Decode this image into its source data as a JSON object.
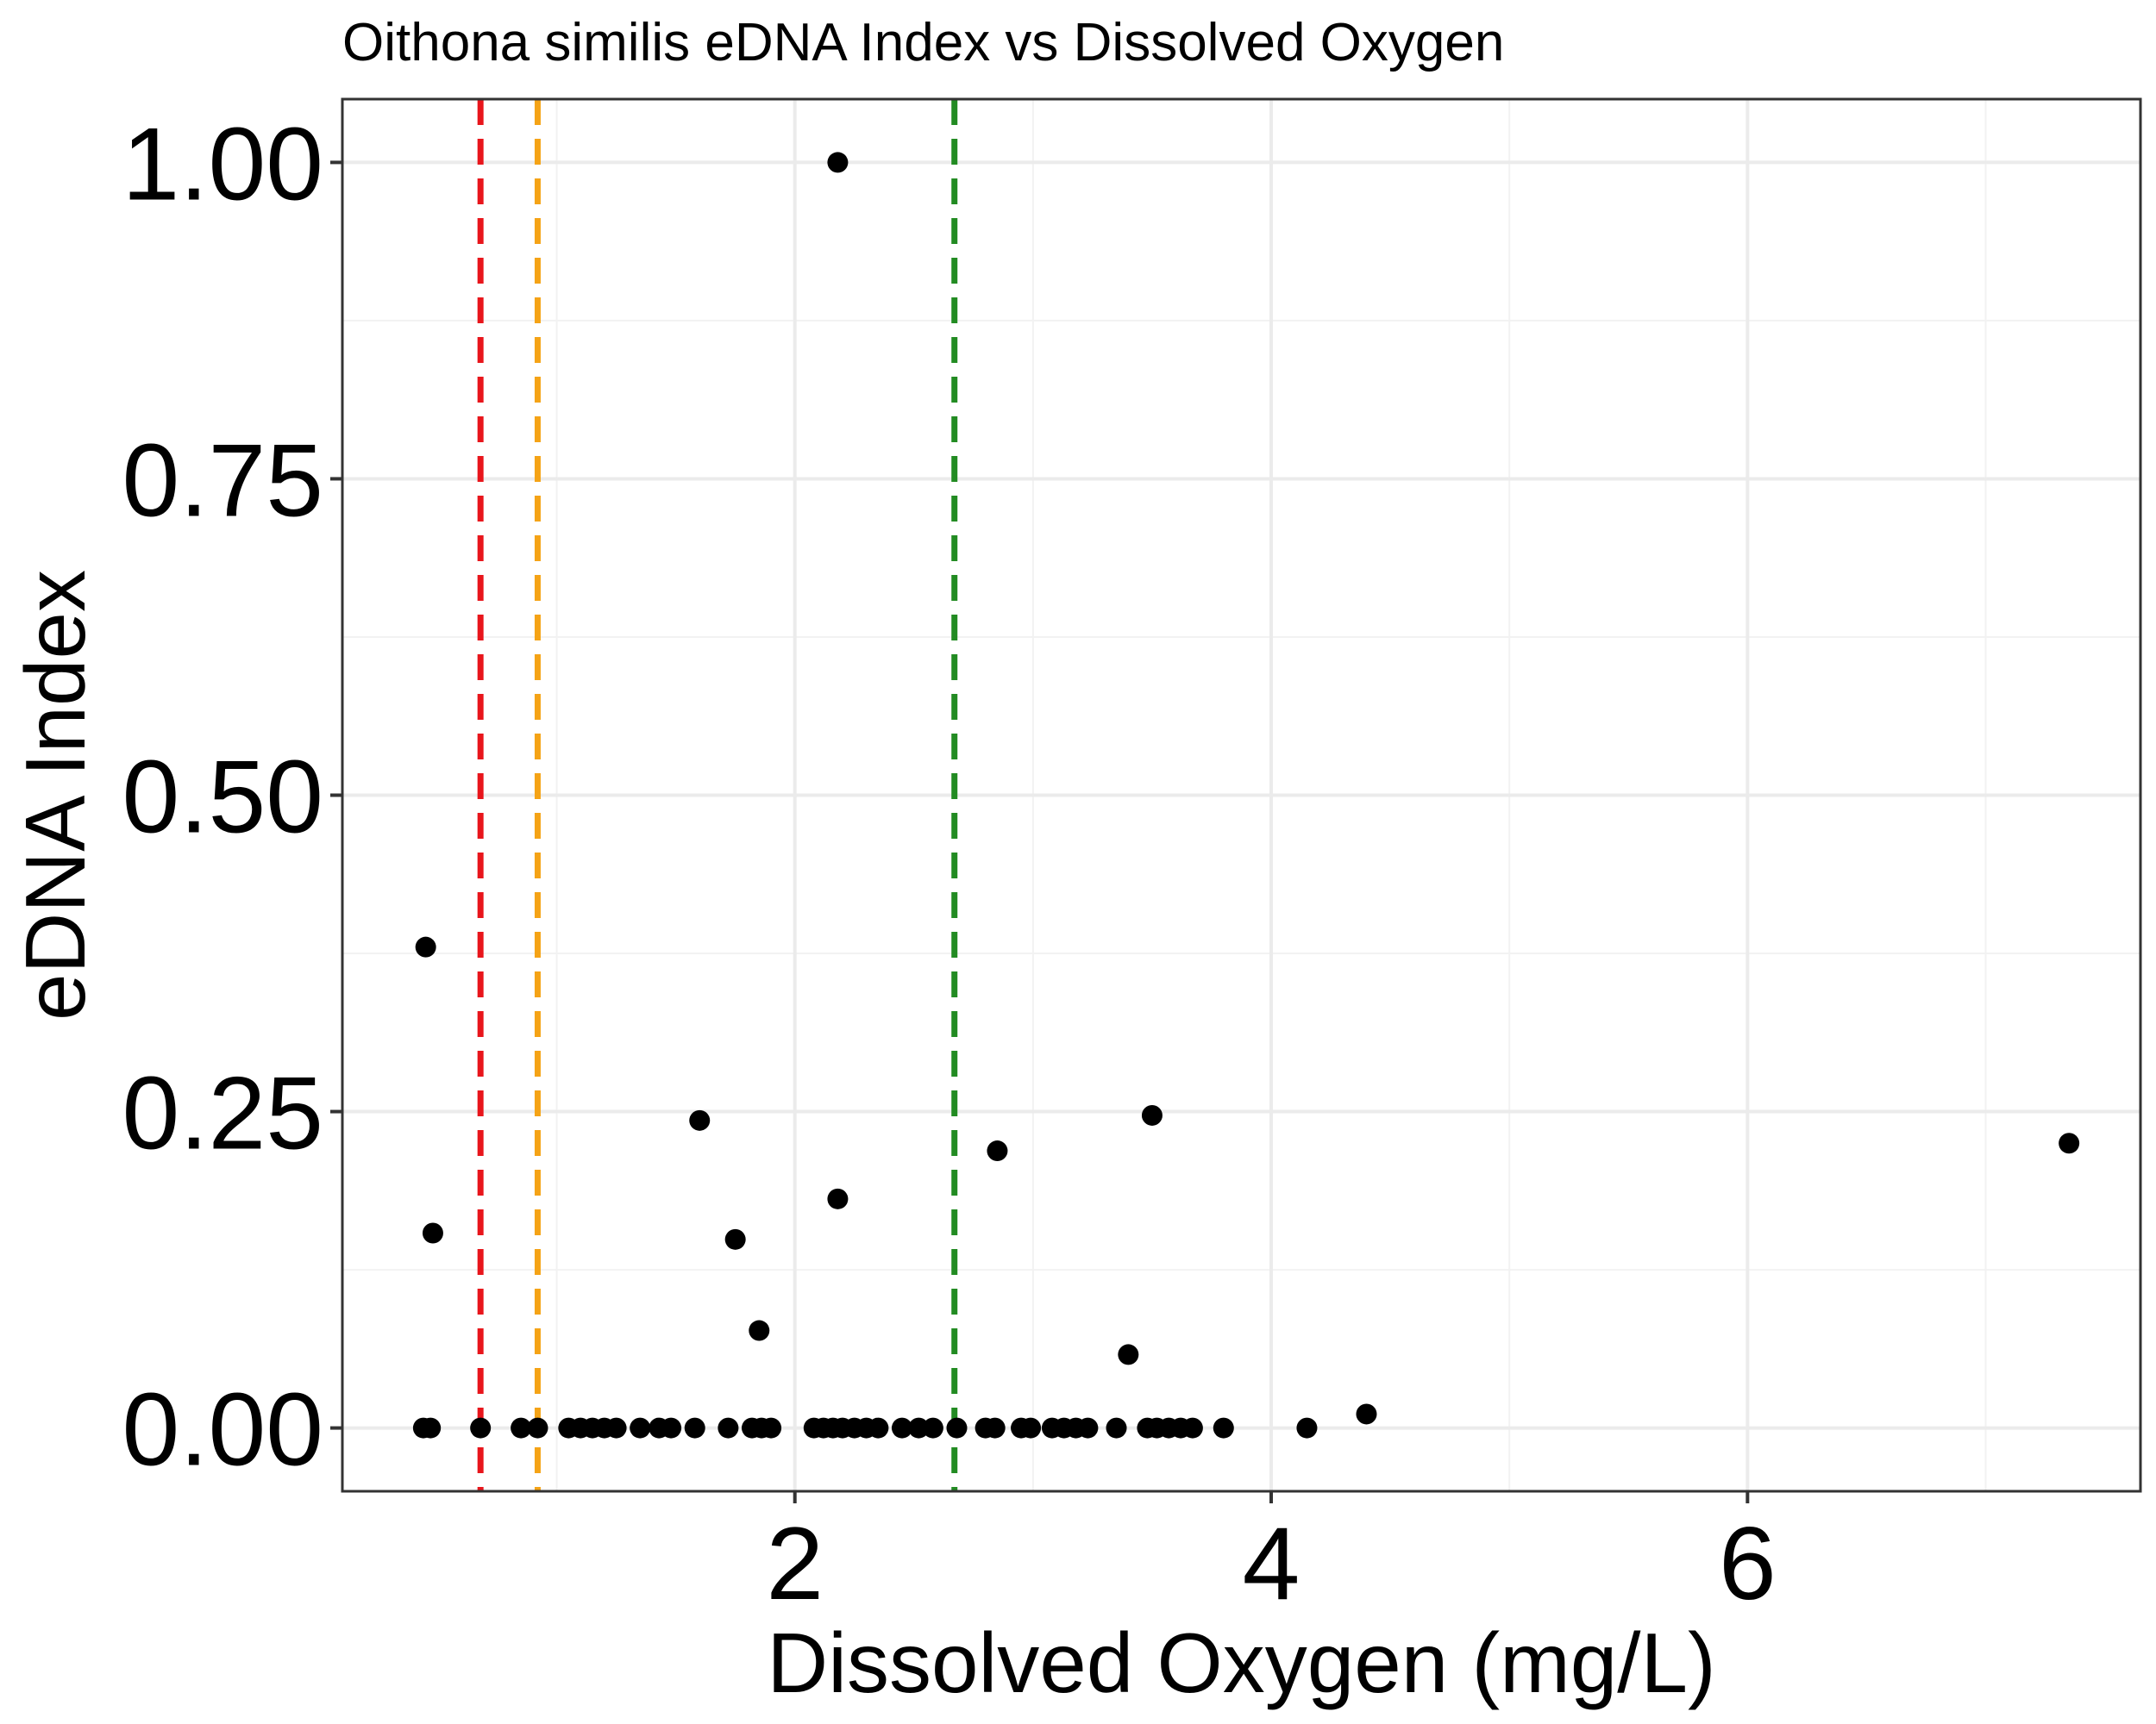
{
  "chart_data": {
    "type": "scatter",
    "title": "Oithona similis eDNA Index vs Dissolved Oxygen",
    "xlabel": "Dissolved Oxygen (mg/L)",
    "ylabel": "eDNA Index",
    "xlim": [
      0.1,
      7.65
    ],
    "ylim": [
      -0.05,
      1.05
    ],
    "x_ticks": [
      2,
      4,
      6
    ],
    "x_tick_labels": [
      "2",
      "4",
      "6"
    ],
    "x_minor_ticks": [
      1,
      3,
      5,
      7
    ],
    "y_ticks": [
      0,
      0.25,
      0.5,
      0.75,
      1
    ],
    "y_tick_labels": [
      "0.00",
      "0.25",
      "0.50",
      "0.75",
      "1.00"
    ],
    "y_minor_ticks": [
      0.125,
      0.375,
      0.625,
      0.875
    ],
    "grid": true,
    "point_color": "#000000",
    "threshold_lines": [
      {
        "x": 0.68,
        "color": "#e8151b"
      },
      {
        "x": 0.92,
        "color": "#f5a316"
      },
      {
        "x": 2.67,
        "color": "#228b22"
      }
    ],
    "points": [
      {
        "x": 0.45,
        "y": 0.38
      },
      {
        "x": 0.48,
        "y": 0.154
      },
      {
        "x": 1.6,
        "y": 0.243
      },
      {
        "x": 1.75,
        "y": 0.149
      },
      {
        "x": 1.85,
        "y": 0.077
      },
      {
        "x": 2.18,
        "y": 1.0
      },
      {
        "x": 2.18,
        "y": 0.181
      },
      {
        "x": 2.85,
        "y": 0.219
      },
      {
        "x": 3.4,
        "y": 0.058
      },
      {
        "x": 3.5,
        "y": 0.247
      },
      {
        "x": 4.4,
        "y": 0.011
      },
      {
        "x": 7.35,
        "y": 0.225
      },
      {
        "x": 0.44,
        "y": 0
      },
      {
        "x": 0.47,
        "y": 0
      },
      {
        "x": 0.68,
        "y": 0
      },
      {
        "x": 0.85,
        "y": 0
      },
      {
        "x": 0.92,
        "y": 0
      },
      {
        "x": 1.05,
        "y": 0
      },
      {
        "x": 1.1,
        "y": 0
      },
      {
        "x": 1.15,
        "y": 0
      },
      {
        "x": 1.2,
        "y": 0
      },
      {
        "x": 1.25,
        "y": 0
      },
      {
        "x": 1.35,
        "y": 0
      },
      {
        "x": 1.43,
        "y": 0
      },
      {
        "x": 1.48,
        "y": 0
      },
      {
        "x": 1.58,
        "y": 0
      },
      {
        "x": 1.72,
        "y": 0
      },
      {
        "x": 1.82,
        "y": 0
      },
      {
        "x": 1.86,
        "y": 0
      },
      {
        "x": 1.9,
        "y": 0
      },
      {
        "x": 2.08,
        "y": 0
      },
      {
        "x": 2.12,
        "y": 0
      },
      {
        "x": 2.16,
        "y": 0
      },
      {
        "x": 2.2,
        "y": 0
      },
      {
        "x": 2.25,
        "y": 0
      },
      {
        "x": 2.3,
        "y": 0
      },
      {
        "x": 2.35,
        "y": 0
      },
      {
        "x": 2.45,
        "y": 0
      },
      {
        "x": 2.52,
        "y": 0
      },
      {
        "x": 2.58,
        "y": 0
      },
      {
        "x": 2.68,
        "y": 0
      },
      {
        "x": 2.8,
        "y": 0
      },
      {
        "x": 2.84,
        "y": 0
      },
      {
        "x": 2.95,
        "y": 0
      },
      {
        "x": 2.99,
        "y": 0
      },
      {
        "x": 3.08,
        "y": 0
      },
      {
        "x": 3.13,
        "y": 0
      },
      {
        "x": 3.18,
        "y": 0
      },
      {
        "x": 3.23,
        "y": 0
      },
      {
        "x": 3.35,
        "y": 0
      },
      {
        "x": 3.48,
        "y": 0
      },
      {
        "x": 3.52,
        "y": 0
      },
      {
        "x": 3.57,
        "y": 0
      },
      {
        "x": 3.62,
        "y": 0
      },
      {
        "x": 3.67,
        "y": 0
      },
      {
        "x": 3.8,
        "y": 0
      },
      {
        "x": 4.15,
        "y": 0
      }
    ]
  }
}
